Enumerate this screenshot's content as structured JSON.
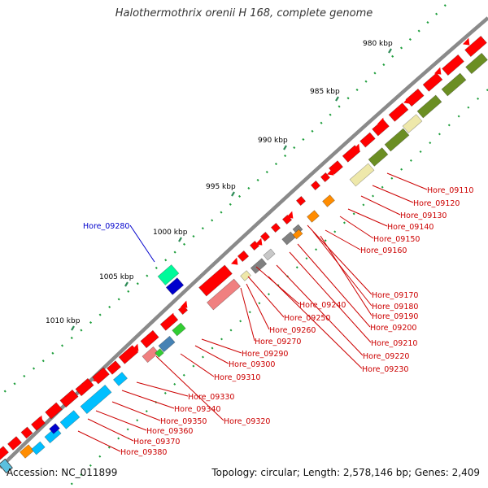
{
  "title": "Halothermothrix orenii H 168, complete genome",
  "footer": {
    "accession": "Accession: NC_011899",
    "summary": "Topology: circular; Length: 2,578,146 bp; Genes: 2,409"
  },
  "colors": {
    "backbone": "#8a8a8a",
    "gene_forward": "#ff0000",
    "gene_pink": "#f08080",
    "gene_gray": "#808080",
    "gene_lightgray": "#c8c8c8",
    "gene_orange": "#ff8c00",
    "gene_yellow": "#eee8aa",
    "gene_olive": "#6b8e23",
    "gene_cyan": "#00bfff",
    "gene_blue": "#0000cd",
    "gene_green": "#32cd32",
    "gene_teal": "#3cb371",
    "gene_aqua": "#00fa9a",
    "gene_steel": "#4682b4",
    "label_red": "#cc0000",
    "label_blue": "#0000cc",
    "tick_green": "#2e8b57",
    "dot_green": "#228b22"
  },
  "ticks": [
    {
      "label": "980 kbp"
    },
    {
      "label": "985 kbp"
    },
    {
      "label": "990 kbp"
    },
    {
      "label": "995 kbp"
    },
    {
      "label": "1000 kbp"
    },
    {
      "label": "1005 kbp"
    },
    {
      "label": "1010 kbp"
    }
  ],
  "gene_labels": [
    {
      "text": "Hore_09110",
      "color": "red"
    },
    {
      "text": "Hore_09120",
      "color": "red"
    },
    {
      "text": "Hore_09130",
      "color": "red"
    },
    {
      "text": "Hore_09140",
      "color": "red"
    },
    {
      "text": "Hore_09150",
      "color": "red"
    },
    {
      "text": "Hore_09160",
      "color": "red"
    },
    {
      "text": "Hore_09170",
      "color": "red"
    },
    {
      "text": "Hore_09180",
      "color": "red"
    },
    {
      "text": "Hore_09190",
      "color": "red"
    },
    {
      "text": "Hore_09200",
      "color": "red"
    },
    {
      "text": "Hore_09210",
      "color": "red"
    },
    {
      "text": "Hore_09220",
      "color": "red"
    },
    {
      "text": "Hore_09230",
      "color": "red"
    },
    {
      "text": "Hore_09240",
      "color": "red"
    },
    {
      "text": "Hore_09250",
      "color": "red"
    },
    {
      "text": "Hore_09260",
      "color": "red"
    },
    {
      "text": "Hore_09270",
      "color": "red"
    },
    {
      "text": "Hore_09280",
      "color": "blue"
    },
    {
      "text": "Hore_09290",
      "color": "red"
    },
    {
      "text": "Hore_09300",
      "color": "red"
    },
    {
      "text": "Hore_09310",
      "color": "red"
    },
    {
      "text": "Hore_09320",
      "color": "red"
    },
    {
      "text": "Hore_09330",
      "color": "red"
    },
    {
      "text": "Hore_09340",
      "color": "red"
    },
    {
      "text": "Hore_09350",
      "color": "red"
    },
    {
      "text": "Hore_09360",
      "color": "red"
    },
    {
      "text": "Hore_09370",
      "color": "red"
    },
    {
      "text": "Hore_09380",
      "color": "red"
    }
  ]
}
